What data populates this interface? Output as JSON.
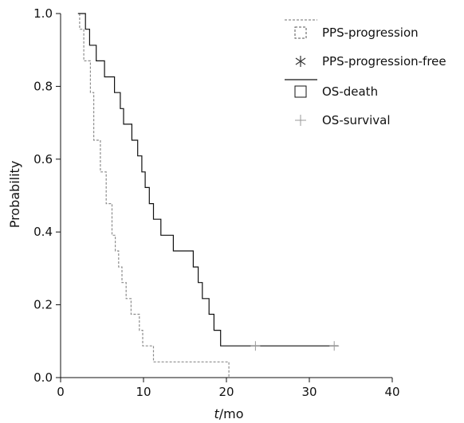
{
  "chart_data": {
    "type": "line",
    "title": "",
    "xlabel": {
      "italic": "t",
      "rest": "/mo"
    },
    "ylabel": "Probability",
    "xlim": [
      0,
      40
    ],
    "ylim": [
      0,
      1.0
    ],
    "x_ticks": [
      "0",
      "10",
      "20",
      "30",
      "40"
    ],
    "y_ticks": [
      "0.0",
      "0.2",
      "0.4",
      "0.6",
      "0.8",
      "1.0"
    ],
    "grid": false,
    "legend_position": "top-right",
    "legend": [
      {
        "label": "PPS-progression",
        "marker": "dashed-square"
      },
      {
        "label": "PPS-progression-free",
        "marker": "asterisk"
      },
      {
        "label": "OS-death",
        "marker": "square"
      },
      {
        "label": "OS-survival",
        "marker": "plus"
      }
    ],
    "series": [
      {
        "name": "PPS",
        "style": "dashed",
        "color": "#8c8c8c",
        "steps": [
          [
            2.3,
            1.0
          ],
          [
            2.3,
            0.957
          ],
          [
            2.8,
            0.957
          ],
          [
            2.8,
            0.87
          ],
          [
            3.6,
            0.87
          ],
          [
            3.6,
            0.783
          ],
          [
            4.0,
            0.783
          ],
          [
            4.0,
            0.652
          ],
          [
            4.8,
            0.652
          ],
          [
            4.8,
            0.565
          ],
          [
            5.5,
            0.565
          ],
          [
            5.5,
            0.478
          ],
          [
            6.2,
            0.478
          ],
          [
            6.2,
            0.391
          ],
          [
            6.6,
            0.391
          ],
          [
            6.6,
            0.348
          ],
          [
            7.0,
            0.348
          ],
          [
            7.0,
            0.304
          ],
          [
            7.4,
            0.304
          ],
          [
            7.4,
            0.261
          ],
          [
            7.9,
            0.261
          ],
          [
            7.9,
            0.217
          ],
          [
            8.5,
            0.217
          ],
          [
            8.5,
            0.174
          ],
          [
            9.5,
            0.174
          ],
          [
            9.5,
            0.13
          ],
          [
            9.9,
            0.13
          ],
          [
            9.9,
            0.087
          ],
          [
            11.2,
            0.087
          ],
          [
            11.2,
            0.043
          ],
          [
            20.3,
            0.043
          ],
          [
            20.3,
            0.0
          ]
        ]
      },
      {
        "name": "OS",
        "style": "solid",
        "color": "#111111",
        "steps": [
          [
            2.1,
            1.0
          ],
          [
            3.0,
            1.0
          ],
          [
            3.0,
            0.957
          ],
          [
            3.5,
            0.957
          ],
          [
            3.5,
            0.913
          ],
          [
            4.3,
            0.913
          ],
          [
            4.3,
            0.87
          ],
          [
            5.3,
            0.87
          ],
          [
            5.3,
            0.826
          ],
          [
            6.5,
            0.826
          ],
          [
            6.5,
            0.783
          ],
          [
            7.2,
            0.783
          ],
          [
            7.2,
            0.739
          ],
          [
            7.6,
            0.739
          ],
          [
            7.6,
            0.696
          ],
          [
            8.6,
            0.696
          ],
          [
            8.6,
            0.652
          ],
          [
            9.3,
            0.652
          ],
          [
            9.3,
            0.609
          ],
          [
            9.8,
            0.609
          ],
          [
            9.8,
            0.565
          ],
          [
            10.2,
            0.565
          ],
          [
            10.2,
            0.522
          ],
          [
            10.7,
            0.522
          ],
          [
            10.7,
            0.478
          ],
          [
            11.2,
            0.478
          ],
          [
            11.2,
            0.435
          ],
          [
            12.1,
            0.435
          ],
          [
            12.1,
            0.391
          ],
          [
            13.6,
            0.391
          ],
          [
            13.6,
            0.348
          ],
          [
            16.0,
            0.348
          ],
          [
            16.0,
            0.304
          ],
          [
            16.6,
            0.304
          ],
          [
            16.6,
            0.261
          ],
          [
            17.1,
            0.261
          ],
          [
            17.1,
            0.217
          ],
          [
            17.9,
            0.217
          ],
          [
            17.9,
            0.174
          ],
          [
            18.5,
            0.174
          ],
          [
            18.5,
            0.13
          ],
          [
            19.3,
            0.13
          ],
          [
            19.3,
            0.087
          ],
          [
            33.5,
            0.087
          ]
        ],
        "censored": [
          [
            23.5,
            0.087
          ],
          [
            33.0,
            0.087
          ]
        ]
      }
    ]
  }
}
